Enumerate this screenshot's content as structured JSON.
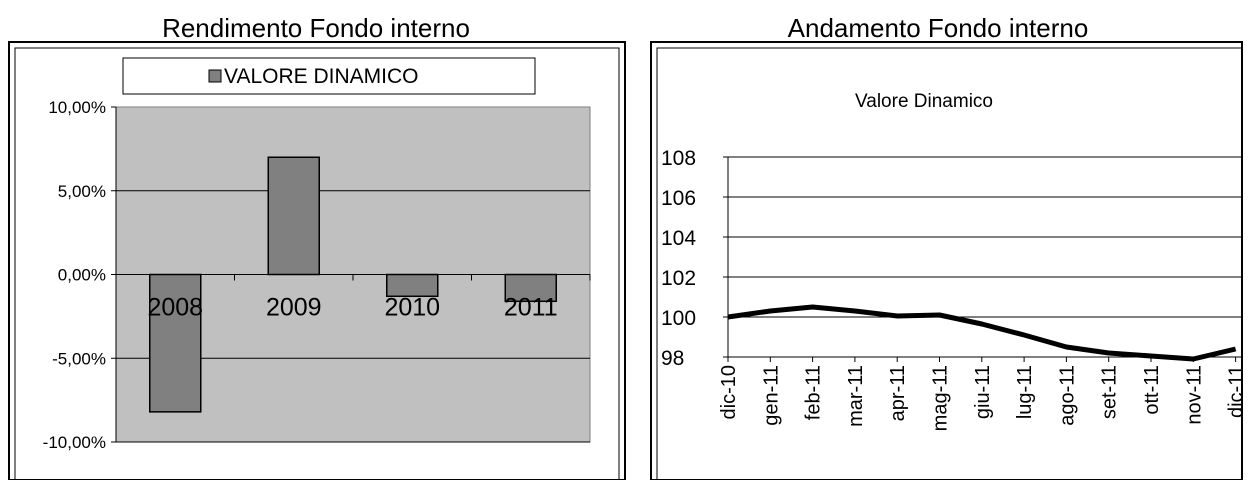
{
  "left_panel": {
    "title": "Rendimento Fondo interno"
  },
  "right_panel": {
    "title": "Andamento Fondo interno"
  },
  "chart_data": [
    {
      "type": "bar",
      "title": "Rendimento Fondo interno",
      "categories": [
        "2008",
        "2009",
        "2010",
        "2011"
      ],
      "series": [
        {
          "name": "VALORE DINAMICO",
          "values": [
            -8.2,
            7.0,
            -1.3,
            -1.6
          ],
          "color": "#808080"
        }
      ],
      "ylim": [
        -10,
        10
      ],
      "yticks": [
        "10,00%",
        "5,00%",
        "0,00%",
        "-5,00%",
        "-10,00%"
      ],
      "grid": true,
      "plot_background": "#c0c0c0",
      "legend": {
        "position": "top",
        "label": "VALORE DINAMICO"
      }
    },
    {
      "type": "line",
      "title": "Andamento Fondo interno",
      "subtitle": "Valore Dinamico",
      "categories": [
        "dic-10",
        "gen-11",
        "feb-11",
        "mar-11",
        "apr-11",
        "mag-11",
        "giu-11",
        "lug-11",
        "ago-11",
        "set-11",
        "ott-11",
        "nov-11",
        "dic-11"
      ],
      "series": [
        {
          "name": "Valore Dinamico",
          "values": [
            100.0,
            100.3,
            100.5,
            100.3,
            100.05,
            100.1,
            99.65,
            99.1,
            98.5,
            98.2,
            98.05,
            97.8,
            98.4
          ],
          "color": "#000000"
        }
      ],
      "ylim": [
        98,
        108
      ],
      "yticks": [
        "108",
        "106",
        "104",
        "102",
        "100",
        "98"
      ],
      "grid": true
    }
  ]
}
